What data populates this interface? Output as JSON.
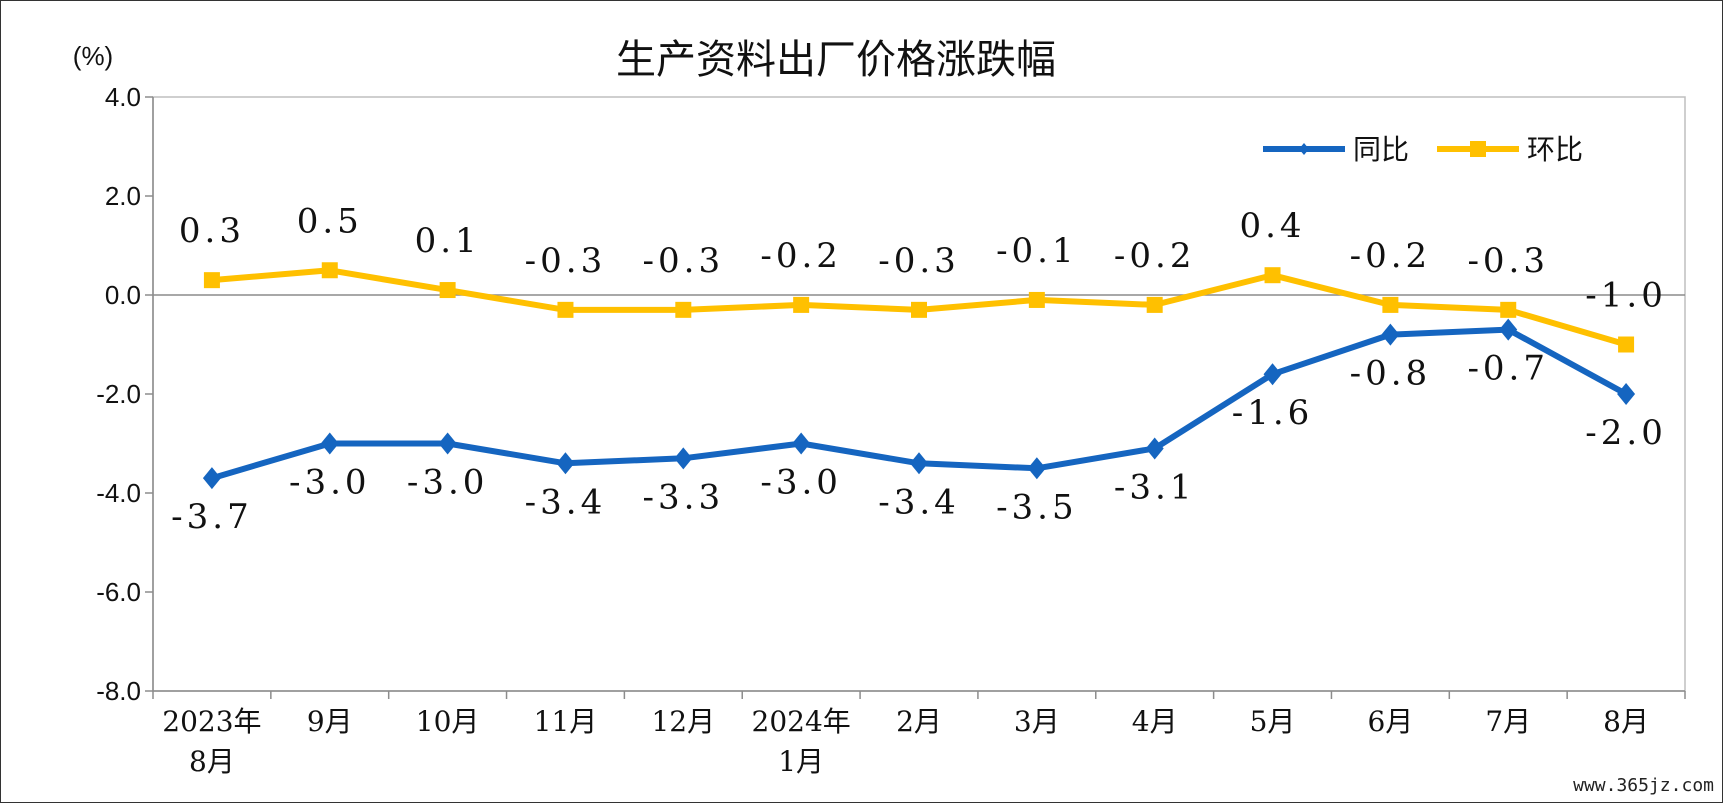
{
  "chart_data": {
    "type": "line",
    "title": "生产资料出厂价格涨跌幅",
    "unit_label": "(%)",
    "categories": [
      [
        "2023年",
        "8月"
      ],
      [
        "9月"
      ],
      [
        "10月"
      ],
      [
        "11月"
      ],
      [
        "12月"
      ],
      [
        "2024年",
        "1月"
      ],
      [
        "2月"
      ],
      [
        "3月"
      ],
      [
        "4月"
      ],
      [
        "5月"
      ],
      [
        "6月"
      ],
      [
        "7月"
      ],
      [
        "8月"
      ]
    ],
    "ylim": [
      -8.0,
      4.0
    ],
    "yticks": [
      4.0,
      2.0,
      0.0,
      -2.0,
      -4.0,
      -6.0,
      -8.0
    ],
    "ytick_labels": [
      "4.0",
      "2.0",
      "0.0",
      "-2.0",
      "-4.0",
      "-6.0",
      "-8.0"
    ],
    "grid": false,
    "legend_position": "top-right",
    "series": [
      {
        "name": "同比",
        "color": "#1565C0",
        "marker": "diamond",
        "label_position": "below",
        "values": [
          -3.7,
          -3.0,
          -3.0,
          -3.4,
          -3.3,
          -3.0,
          -3.4,
          -3.5,
          -3.1,
          -1.6,
          -0.8,
          -0.7,
          -2.0
        ],
        "labels": [
          "-3.7",
          "-3.0",
          "-3.0",
          "-3.4",
          "-3.3",
          "-3.0",
          "-3.4",
          "-3.5",
          "-3.1",
          "-1.6",
          "-0.8",
          "-0.7",
          "-2.0"
        ]
      },
      {
        "name": "环比",
        "color": "#FFC000",
        "marker": "square",
        "label_position": "above",
        "values": [
          0.3,
          0.5,
          0.1,
          -0.3,
          -0.3,
          -0.2,
          -0.3,
          -0.1,
          -0.2,
          0.4,
          -0.2,
          -0.3,
          -1.0
        ],
        "labels": [
          "0.3",
          "0.5",
          "0.1",
          "-0.3",
          "-0.3",
          "-0.2",
          "-0.3",
          "-0.1",
          "-0.2",
          "0.4",
          "-0.2",
          "-0.3",
          "-1.0"
        ]
      }
    ]
  },
  "watermark": "www.365jz.com"
}
